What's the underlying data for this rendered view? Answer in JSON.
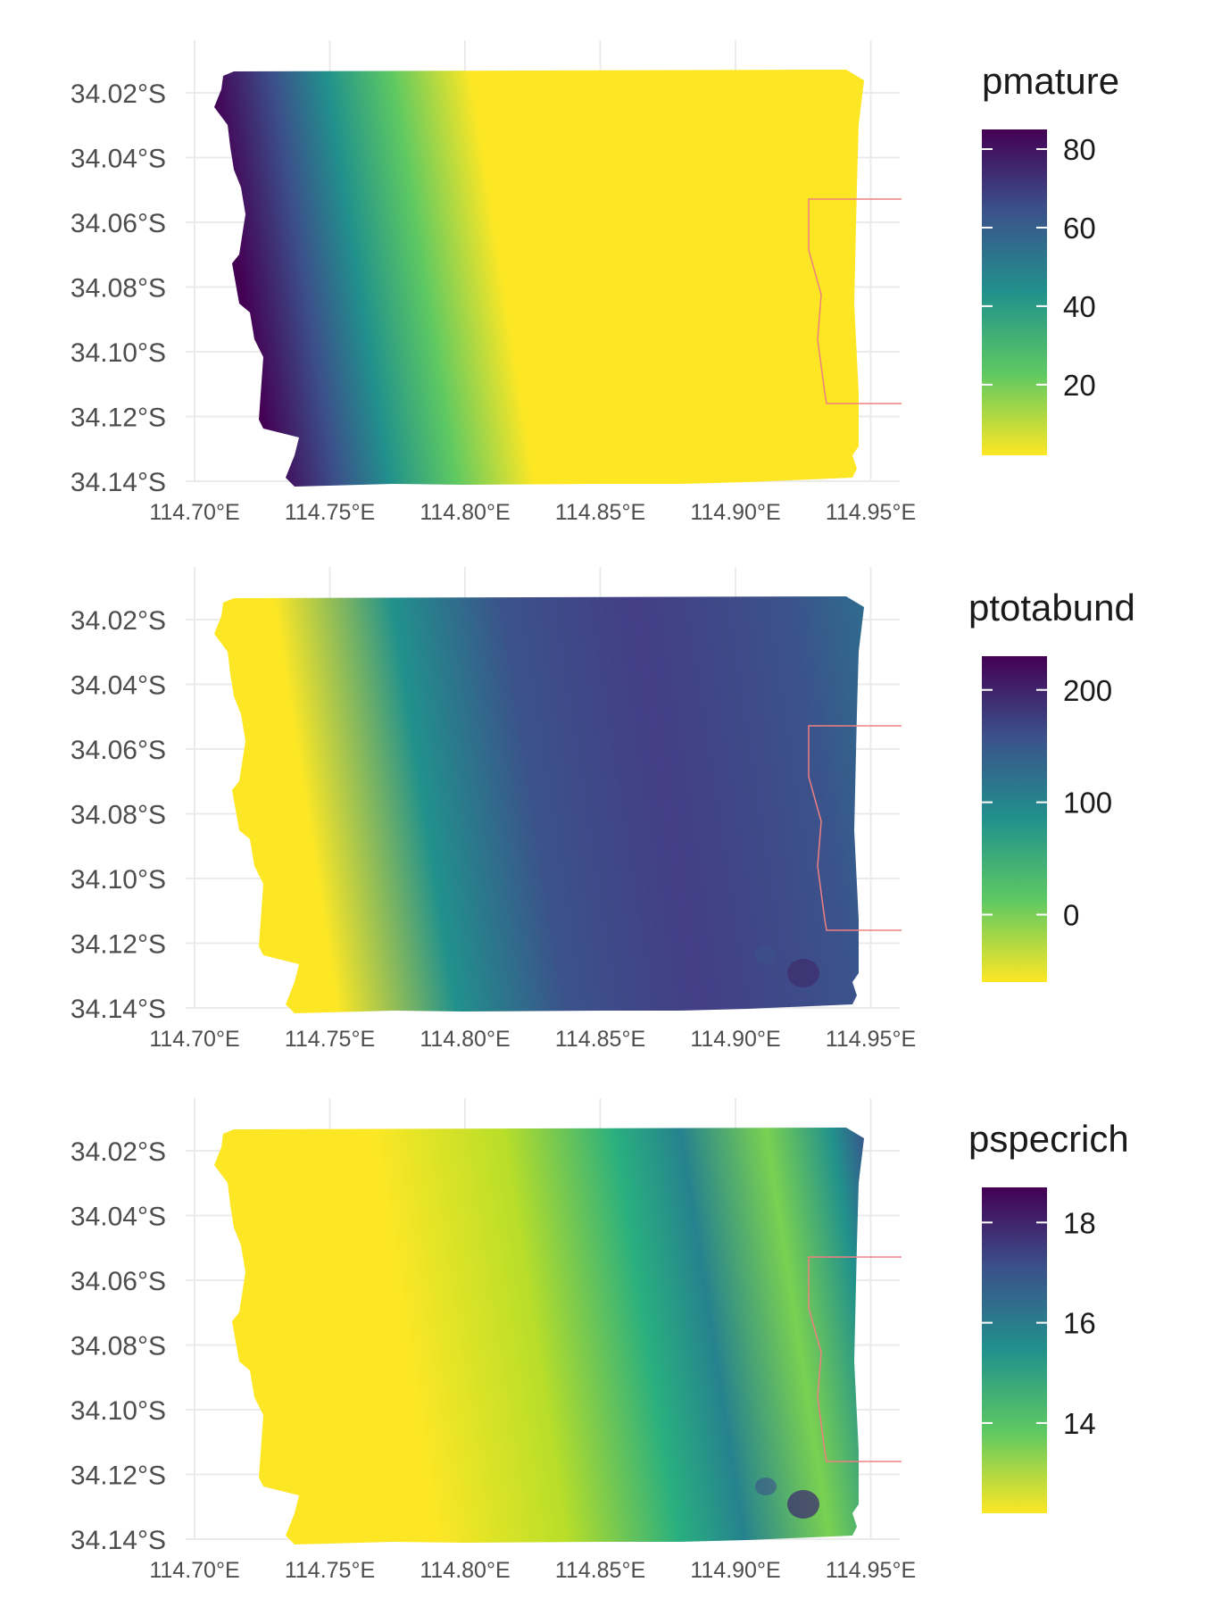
{
  "colors": {
    "viridis_low": "#fde725",
    "viridis_mid_low": "#5ec962",
    "viridis_mid": "#21918c",
    "viridis_mid_high": "#3b528b",
    "viridis_high": "#440154",
    "boundary_line": "#f08080",
    "grid": "#ebebeb"
  },
  "chart_data": [
    {
      "type": "heatmap",
      "legend_title": "pmature",
      "fill_scale": "viridis (reversed: low = yellow, high = purple)",
      "legend_ticks": [
        "80",
        "60",
        "40",
        "20"
      ],
      "legend_range": [
        2,
        85
      ],
      "x_tick_labels": [
        "114.70°E",
        "114.75°E",
        "114.80°E",
        "114.85°E",
        "114.90°E",
        "114.95°E"
      ],
      "y_tick_labels": [
        "34.02°S",
        "34.04°S",
        "34.06°S",
        "34.08°S",
        "34.10°S",
        "34.12°S",
        "34.14°S"
      ],
      "xlim": [
        114.7,
        114.96
      ],
      "ylim": [
        -34.14,
        -34.01
      ],
      "grid": true,
      "legend_position": "right",
      "pattern": "high values (~80) along western edge, decreasing to ~0 east of 114.78°E"
    },
    {
      "type": "heatmap",
      "legend_title": "ptotabund",
      "fill_scale": "viridis (reversed: low = yellow, high = purple)",
      "legend_ticks": [
        "200",
        "100",
        "0"
      ],
      "legend_range": [
        -60,
        230
      ],
      "x_tick_labels": [
        "114.70°E",
        "114.75°E",
        "114.80°E",
        "114.85°E",
        "114.90°E",
        "114.95°E"
      ],
      "y_tick_labels": [
        "34.02°S",
        "34.04°S",
        "34.06°S",
        "34.08°S",
        "34.10°S",
        "34.12°S",
        "34.14°S"
      ],
      "xlim": [
        114.7,
        114.96
      ],
      "ylim": [
        -34.14,
        -34.01
      ],
      "grid": true,
      "legend_position": "right",
      "pattern": "low values (~-50) in the west, rising to ~180 in the central-east"
    },
    {
      "type": "heatmap",
      "legend_title": "pspecrich",
      "fill_scale": "viridis (reversed: low = yellow, high = purple)",
      "legend_ticks": [
        "18",
        "16",
        "14"
      ],
      "legend_range": [
        12.2,
        18.7
      ],
      "x_tick_labels": [
        "114.70°E",
        "114.75°E",
        "114.80°E",
        "114.85°E",
        "114.90°E",
        "114.95°E"
      ],
      "y_tick_labels": [
        "34.02°S",
        "34.04°S",
        "34.06°S",
        "34.08°S",
        "34.10°S",
        "34.12°S",
        "34.14°S"
      ],
      "xlim": [
        114.7,
        114.96
      ],
      "ylim": [
        -34.14,
        -34.01
      ],
      "grid": true,
      "legend_position": "right",
      "pattern": "low values (~12.5) in the west, moderate (~15.5) central, patches ~17 in the southeast"
    }
  ]
}
